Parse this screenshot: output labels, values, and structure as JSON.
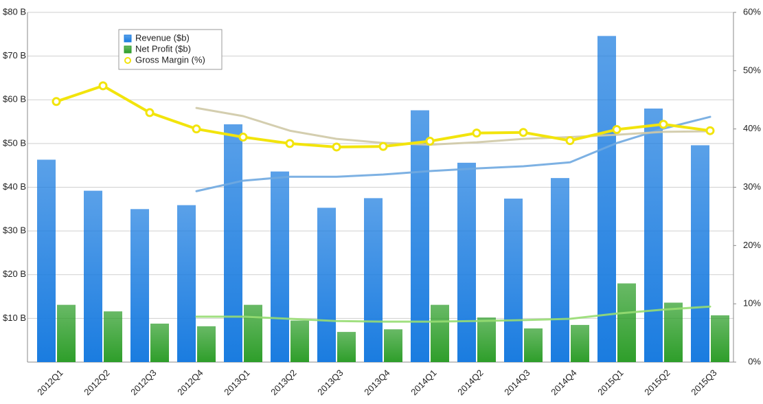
{
  "chart_data": {
    "type": "bar",
    "categories": [
      "2012Q1",
      "2012Q2",
      "2012Q3",
      "2012Q4",
      "2013Q1",
      "2013Q2",
      "2013Q3",
      "2013Q4",
      "2014Q1",
      "2014Q2",
      "2014Q3",
      "2014Q4",
      "2015Q1",
      "2015Q2",
      "2015Q3"
    ],
    "series": [
      {
        "name": "Revenue ($b)",
        "type": "bar",
        "color": "#1a7ce0",
        "values": [
          46.3,
          39.2,
          35.0,
          35.9,
          54.4,
          43.6,
          35.3,
          37.5,
          57.6,
          45.6,
          37.4,
          42.1,
          74.6,
          58.0,
          49.6
        ]
      },
      {
        "name": "Net Profit ($b)",
        "type": "bar",
        "color": "#2e9e2a",
        "values": [
          13.1,
          11.6,
          8.8,
          8.2,
          13.1,
          9.5,
          6.9,
          7.5,
          13.1,
          10.2,
          7.7,
          8.5,
          18.0,
          13.6,
          10.7
        ]
      },
      {
        "name": "Gross Margin (%)",
        "type": "line",
        "axis": "y2",
        "color": "#f2e40c",
        "values": [
          44.7,
          47.4,
          42.8,
          40.0,
          38.6,
          37.5,
          36.9,
          37.0,
          37.9,
          39.3,
          39.4,
          38.0,
          39.9,
          40.8,
          39.7
        ]
      },
      {
        "type": "line",
        "color": "#6fa8e0",
        "values": [
          null,
          null,
          null,
          39.1,
          41.5,
          42.4,
          42.4,
          42.9,
          43.7,
          44.3,
          44.8,
          45.7,
          50.1,
          53.4,
          56.1
        ]
      },
      {
        "type": "line",
        "color": "#97dd72",
        "values": [
          null,
          null,
          null,
          10.4,
          10.4,
          9.9,
          9.4,
          9.25,
          9.25,
          9.4,
          9.6,
          9.9,
          11.1,
          12.0,
          12.7
        ]
      },
      {
        "type": "line",
        "axis": "y2",
        "color": "#cfc9a6",
        "values": [
          null,
          null,
          null,
          43.6,
          42.2,
          39.7,
          38.3,
          37.6,
          37.3,
          37.7,
          38.3,
          38.6,
          39.0,
          39.5,
          39.6
        ]
      }
    ],
    "ylim": [
      0,
      80
    ],
    "yticks": [
      {
        "value": 10,
        "label": "$10 B"
      },
      {
        "value": 20,
        "label": "$20 B"
      },
      {
        "value": 30,
        "label": "$30 B"
      },
      {
        "value": 40,
        "label": "$40 B"
      },
      {
        "value": 50,
        "label": "$50 B"
      },
      {
        "value": 60,
        "label": "$60 B"
      },
      {
        "value": 70,
        "label": "$70 B"
      },
      {
        "value": 80,
        "label": "$80 B"
      }
    ],
    "y2lim": [
      0,
      60
    ],
    "y2ticks": [
      {
        "value": 0,
        "label": "0%"
      },
      {
        "value": 10,
        "label": "10%"
      },
      {
        "value": 20,
        "label": "20%"
      },
      {
        "value": 30,
        "label": "30%"
      },
      {
        "value": 40,
        "label": "40%"
      },
      {
        "value": 50,
        "label": "50%"
      },
      {
        "value": 60,
        "label": "60%"
      }
    ],
    "grid": true,
    "legend": "top-left"
  }
}
